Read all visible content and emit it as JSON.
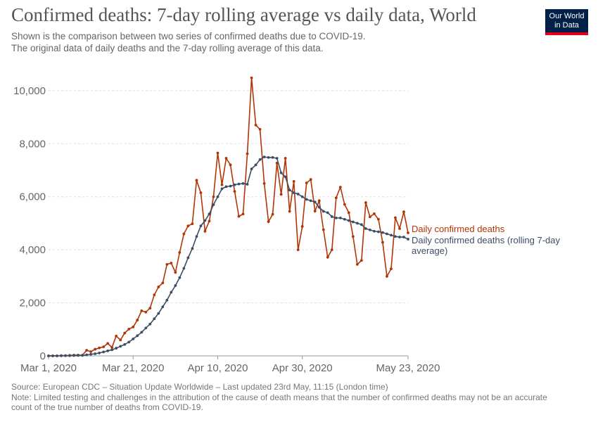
{
  "header": {
    "title": "Confirmed deaths: 7-day rolling average vs daily data, World",
    "subtitle_line1": "Shown is the comparison between two series of confirmed deaths due to COVID-19.",
    "subtitle_line2": "The original data of daily deaths and the 7-day rolling average of this data."
  },
  "logo": {
    "line1": "Our World",
    "line2": "in Data",
    "bg_color": "#002147",
    "accent_color": "#e3001b"
  },
  "footer": {
    "source": "Source: European CDC – Situation Update Worldwide – Last updated 23rd May, 11:15 (London time)",
    "note_line1": "Note: Limited testing and challenges in the attribution of the cause of death means that the number of confirmed deaths may not be an accurate",
    "note_line2": "count of the true number of deaths from COVID-19."
  },
  "chart_data": {
    "type": "line",
    "title": "Confirmed deaths: 7-day rolling average vs daily data, World",
    "x_range": [
      "2020-03-01",
      "2020-05-23"
    ],
    "x_ticks": [
      "Mar 1, 2020",
      "Mar 21, 2020",
      "Apr 10, 2020",
      "Apr 30, 2020",
      "May 23, 2020"
    ],
    "ylim": [
      0,
      10500
    ],
    "y_ticks": [
      "0",
      "2,000",
      "4,000",
      "6,000",
      "8,000",
      "10,000"
    ],
    "grid": "horizontal dashed",
    "legend": "right (labels at line ends)",
    "series": [
      {
        "name": "Daily confirmed deaths",
        "color": "#b13507",
        "values": [
          2,
          4,
          3,
          12,
          11,
          20,
          30,
          28,
          25,
          210,
          160,
          250,
          300,
          340,
          470,
          320,
          750,
          600,
          860,
          1010,
          1090,
          1350,
          1700,
          1650,
          1800,
          2300,
          2600,
          2750,
          3450,
          3500,
          3150,
          3900,
          4600,
          4900,
          4980,
          6620,
          6150,
          4700,
          5080,
          6000,
          7650,
          6450,
          7450,
          7200,
          6200,
          5260,
          5350,
          7620,
          10480,
          8700,
          8540,
          6500,
          5060,
          5340,
          7270,
          6090,
          7450,
          5450,
          6580,
          4000,
          4880,
          6520,
          6650,
          5460,
          5850,
          4760,
          3720,
          4000,
          5960,
          6360,
          5710,
          5400,
          4500,
          3450,
          3600,
          5780,
          5240,
          5360,
          5150,
          4280,
          3000,
          3280,
          5210,
          4800,
          5430,
          4640
        ]
      },
      {
        "name": "Daily confirmed deaths (rolling 7-day average)",
        "color": "#3c4e66",
        "values": [
          0,
          0,
          1,
          3,
          5,
          8,
          12,
          15,
          18,
          40,
          60,
          80,
          110,
          150,
          190,
          230,
          290,
          360,
          430,
          520,
          640,
          760,
          890,
          1050,
          1200,
          1400,
          1600,
          1850,
          2100,
          2400,
          2650,
          2950,
          3300,
          3700,
          4050,
          4500,
          4900,
          5100,
          5350,
          5700,
          6000,
          6300,
          6380,
          6400,
          6450,
          6480,
          6500,
          6470,
          7050,
          7200,
          7400,
          7500,
          7480,
          7480,
          7450,
          6900,
          6750,
          6250,
          6150,
          6100,
          6000,
          5900,
          5850,
          5800,
          5600,
          5450,
          5400,
          5250,
          5200,
          5200,
          5150,
          5100,
          5050,
          5000,
          4950,
          4800,
          4750,
          4700,
          4680,
          4650,
          4600,
          4550,
          4500,
          4480,
          4480,
          4400
        ]
      }
    ]
  }
}
